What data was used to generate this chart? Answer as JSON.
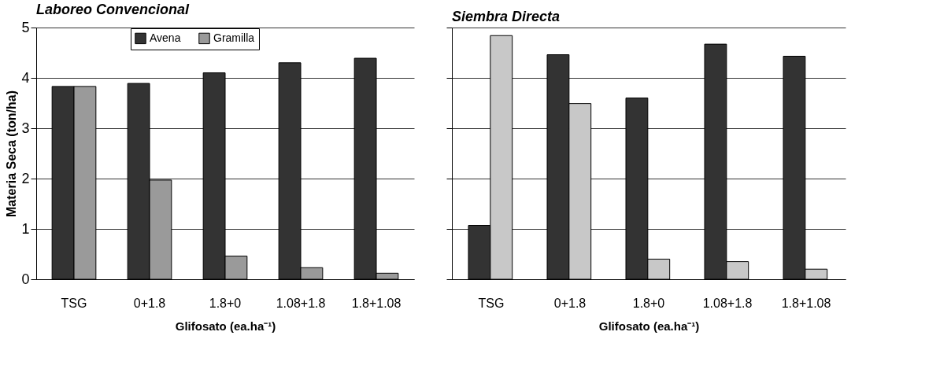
{
  "chart_data": [
    {
      "type": "bar",
      "title": "Laboreo Convencional",
      "xlabel": "Glifosato (ea.ha⁻¹)",
      "ylabel": "Materia Seca (ton/ha)",
      "categories": [
        "TSG",
        "0+1.8",
        "1.8+0",
        "1.08+1.8",
        "1.8+1.08"
      ],
      "series": [
        {
          "name": "Avena",
          "color": "#333333",
          "values": [
            3.83,
            3.89,
            4.1,
            4.3,
            4.39
          ]
        },
        {
          "name": "Gramilla",
          "color": "#9a9a9a",
          "values": [
            3.83,
            1.97,
            0.46,
            0.23,
            0.12
          ]
        }
      ],
      "ylim": [
        0,
        5
      ],
      "yticks": [
        0,
        1,
        2,
        3,
        4,
        5
      ],
      "grid": "y",
      "legend": "top"
    },
    {
      "type": "bar",
      "title": "Siembra Directa",
      "xlabel": "Glifosato (ea.ha⁻¹)",
      "categories": [
        "TSG",
        "0+1.8",
        "1.8+0",
        "1.08+1.8",
        "1.8+1.08"
      ],
      "series": [
        {
          "color": "#333333",
          "values": [
            1.07,
            4.46,
            3.6,
            4.67,
            4.43
          ]
        },
        {
          "color": "#c8c8c8",
          "values": [
            4.84,
            3.49,
            0.4,
            0.35,
            0.2
          ]
        }
      ],
      "ylim": [
        0,
        5
      ],
      "yticks": [
        0,
        1,
        2,
        3,
        4,
        5
      ],
      "grid": "y",
      "tick_labels": "x"
    }
  ]
}
